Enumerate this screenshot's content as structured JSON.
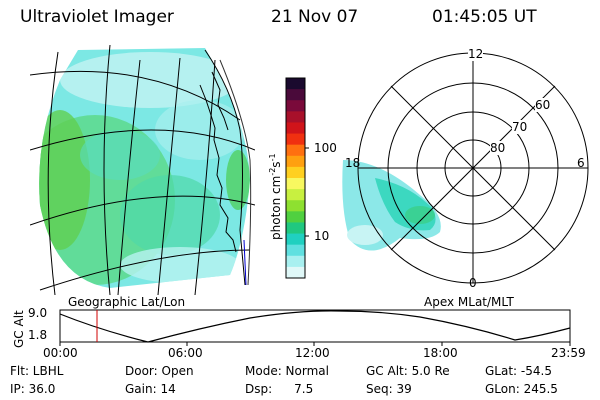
{
  "header": {
    "title": "Ultraviolet Imager",
    "date": "21 Nov 07",
    "time": "01:45:05 UT"
  },
  "colorbar": {
    "unit": "photon cm",
    "unit_sup1": "-2",
    "unit_mid": "s",
    "unit_sup2": "-1",
    "ticks": [
      "100",
      "10"
    ],
    "colors": [
      "#1a0a2e",
      "#4a0a3a",
      "#7a0a3a",
      "#a8102a",
      "#d0141a",
      "#f03010",
      "#ff7010",
      "#ffa010",
      "#ffd020",
      "#f8f860",
      "#c8f040",
      "#8ee030",
      "#50d040",
      "#20c880",
      "#20d0c0",
      "#60e0e0",
      "#a8f0f0",
      "#e0f8f8"
    ]
  },
  "map": {
    "left_label": "Geographic Lat/Lon",
    "right_label": "Apex MLat/MLT"
  },
  "polar": {
    "mlt_labels": [
      "12",
      "18",
      "6",
      "0"
    ],
    "lat_labels": [
      "60",
      "70",
      "80"
    ]
  },
  "altitude_plot": {
    "axis_title": "GC Alt",
    "y_ticks": [
      "9.0",
      "1.8"
    ],
    "x_ticks": [
      "00:00",
      "06:00",
      "12:00",
      "18:00",
      "23:59"
    ]
  },
  "info": {
    "flt": "Flt: LBHL",
    "ip": "IP: 36.0",
    "door": "Door: Open",
    "gain": "Gain: 14",
    "mode": "Mode: Normal",
    "dsp_label": "Dsp:",
    "dsp_value": "7.5",
    "gc_alt": "GC Alt: 5.0 Re",
    "seq": "Seq: 39",
    "glat": "GLat: -54.5",
    "glon": "GLon: 245.5"
  }
}
